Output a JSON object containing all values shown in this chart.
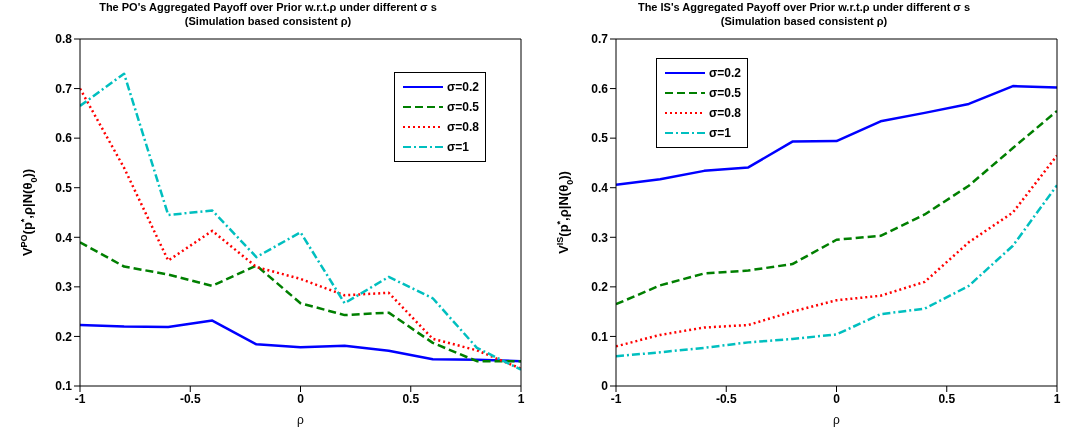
{
  "chart_data": [
    {
      "type": "line",
      "title": "The PO's Aggregated Payoff over Prior w.r.t.ρ under different σ s",
      "subtitle": "(Simulation based consistent ρ)",
      "xlabel": "ρ",
      "ylabel": "V$^{PO}$(p$^{*}$,ρ|N(θ$_{0}$))",
      "x": [
        -1,
        -0.8,
        -0.6,
        -0.4,
        -0.2,
        0,
        0.2,
        0.4,
        0.6,
        0.8,
        1
      ],
      "series": [
        {
          "name": "σ=0.2",
          "color": "#0000ff",
          "line_style": "solid",
          "values": [
            0.223,
            0.22,
            0.219,
            0.232,
            0.184,
            0.178,
            0.181,
            0.171,
            0.154,
            0.153,
            0.15
          ]
        },
        {
          "name": "σ=0.5",
          "color": "#007f00",
          "line_style": "dashed",
          "values": [
            0.39,
            0.341,
            0.325,
            0.302,
            0.343,
            0.267,
            0.243,
            0.248,
            0.187,
            0.15,
            0.15
          ]
        },
        {
          "name": "σ=0.8",
          "color": "#ff0000",
          "line_style": "dotted",
          "values": [
            0.7,
            0.54,
            0.353,
            0.413,
            0.34,
            0.316,
            0.283,
            0.288,
            0.195,
            0.172,
            0.135
          ]
        },
        {
          "name": "σ=1",
          "color": "#00bfbf",
          "line_style": "dashdot",
          "values": [
            0.665,
            0.73,
            0.445,
            0.454,
            0.36,
            0.41,
            0.267,
            0.32,
            0.277,
            0.177,
            0.133
          ]
        }
      ],
      "xlim": [
        -1,
        1
      ],
      "xticks": [
        -1,
        -0.5,
        0,
        0.5,
        1
      ],
      "ylim": [
        0.1,
        0.8
      ],
      "yticks": [
        0.1,
        0.2,
        0.3,
        0.4,
        0.5,
        0.6,
        0.7,
        0.8
      ],
      "grid": false,
      "legend": "top right",
      "marker": "none"
    },
    {
      "type": "line",
      "title": "The IS's Aggregated Payoff over Prior w.r.t.ρ under different σ s",
      "subtitle": "(Simulation based consistent ρ)",
      "xlabel": "ρ",
      "ylabel": "V$^{IS}$(p$^{*}$,ρ|N(θ$_{0}$))",
      "x": [
        -1,
        -0.8,
        -0.6,
        -0.4,
        -0.2,
        0,
        0.2,
        0.4,
        0.6,
        0.8,
        1
      ],
      "series": [
        {
          "name": "σ=0.2",
          "color": "#0000ff",
          "line_style": "solid",
          "values": [
            0.406,
            0.417,
            0.434,
            0.441,
            0.493,
            0.494,
            0.534,
            0.551,
            0.569,
            0.605,
            0.602
          ]
        },
        {
          "name": "σ=0.5",
          "color": "#007f00",
          "line_style": "dashed",
          "values": [
            0.165,
            0.203,
            0.227,
            0.233,
            0.246,
            0.295,
            0.303,
            0.346,
            0.404,
            0.48,
            0.555
          ]
        },
        {
          "name": "σ=0.8",
          "color": "#ff0000",
          "line_style": "dotted",
          "values": [
            0.08,
            0.103,
            0.118,
            0.123,
            0.15,
            0.173,
            0.182,
            0.21,
            0.29,
            0.35,
            0.465
          ]
        },
        {
          "name": "σ=1",
          "color": "#00bfbf",
          "line_style": "dashdot",
          "values": [
            0.06,
            0.068,
            0.077,
            0.088,
            0.095,
            0.104,
            0.145,
            0.156,
            0.202,
            0.283,
            0.405
          ]
        }
      ],
      "xlim": [
        -1,
        1
      ],
      "xticks": [
        -1,
        -0.5,
        0,
        0.5,
        1
      ],
      "ylim": [
        0,
        0.7
      ],
      "yticks": [
        0,
        0.1,
        0.2,
        0.3,
        0.4,
        0.5,
        0.6,
        0.7
      ],
      "grid": false,
      "legend": "top left",
      "marker": "none"
    }
  ]
}
